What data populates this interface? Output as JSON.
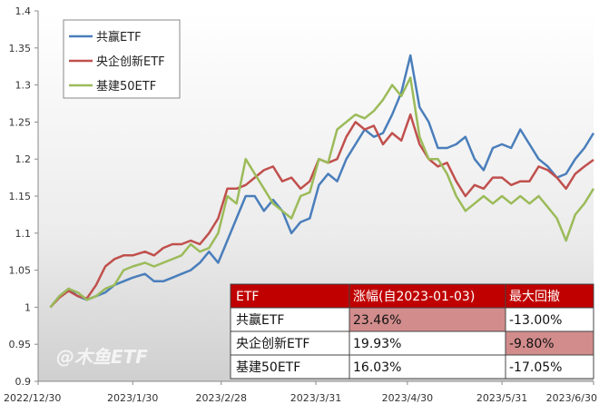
{
  "chart_data": {
    "type": "line",
    "title": "",
    "xlabel": "",
    "ylabel": "",
    "ylim": [
      0.9,
      1.4
    ],
    "yticks": [
      "0.9",
      "0.95",
      "1",
      "1.05",
      "1.1",
      "1.15",
      "1.2",
      "1.25",
      "1.3",
      "1.35",
      "1.4"
    ],
    "xticks": [
      {
        "date": "2022-12-30",
        "label": "2022/12/30"
      },
      {
        "date": "2023-01-30",
        "label": "2023/1/30"
      },
      {
        "date": "2023-02-28",
        "label": "2023/2/28"
      },
      {
        "date": "2023-03-31",
        "label": "2023/3/31"
      },
      {
        "date": "2023-04-30",
        "label": "2023/4/30"
      },
      {
        "date": "2023-05-31",
        "label": "2023/5/31"
      },
      {
        "date": "2023-06-30",
        "label": "2023/6/30"
      }
    ],
    "xlim": [
      "2022-12-30",
      "2023-06-30"
    ],
    "grid": false,
    "legend_position": "top-left",
    "series": [
      {
        "name": "共赢ETF",
        "color": "#4a7ebb",
        "points": [
          [
            "2023-01-03",
            1.0
          ],
          [
            "2023-01-06",
            1.015
          ],
          [
            "2023-01-09",
            1.025
          ],
          [
            "2023-01-12",
            1.015
          ],
          [
            "2023-01-15",
            1.01
          ],
          [
            "2023-01-18",
            1.015
          ],
          [
            "2023-01-21",
            1.02
          ],
          [
            "2023-01-24",
            1.03
          ],
          [
            "2023-01-27",
            1.035
          ],
          [
            "2023-01-30",
            1.04
          ],
          [
            "2023-02-03",
            1.045
          ],
          [
            "2023-02-06",
            1.035
          ],
          [
            "2023-02-09",
            1.035
          ],
          [
            "2023-02-12",
            1.04
          ],
          [
            "2023-02-15",
            1.045
          ],
          [
            "2023-02-18",
            1.05
          ],
          [
            "2023-02-21",
            1.06
          ],
          [
            "2023-02-24",
            1.075
          ],
          [
            "2023-02-27",
            1.06
          ],
          [
            "2023-03-02",
            1.09
          ],
          [
            "2023-03-05",
            1.12
          ],
          [
            "2023-03-08",
            1.15
          ],
          [
            "2023-03-11",
            1.15
          ],
          [
            "2023-03-14",
            1.13
          ],
          [
            "2023-03-17",
            1.145
          ],
          [
            "2023-03-20",
            1.13
          ],
          [
            "2023-03-23",
            1.1
          ],
          [
            "2023-03-26",
            1.115
          ],
          [
            "2023-03-29",
            1.12
          ],
          [
            "2023-04-01",
            1.165
          ],
          [
            "2023-04-04",
            1.18
          ],
          [
            "2023-04-07",
            1.17
          ],
          [
            "2023-04-10",
            1.2
          ],
          [
            "2023-04-13",
            1.22
          ],
          [
            "2023-04-16",
            1.24
          ],
          [
            "2023-04-19",
            1.23
          ],
          [
            "2023-04-22",
            1.235
          ],
          [
            "2023-04-25",
            1.26
          ],
          [
            "2023-04-28",
            1.29
          ],
          [
            "2023-05-01",
            1.34
          ],
          [
            "2023-05-04",
            1.27
          ],
          [
            "2023-05-07",
            1.25
          ],
          [
            "2023-05-10",
            1.215
          ],
          [
            "2023-05-13",
            1.215
          ],
          [
            "2023-05-16",
            1.22
          ],
          [
            "2023-05-19",
            1.23
          ],
          [
            "2023-05-22",
            1.2
          ],
          [
            "2023-05-25",
            1.185
          ],
          [
            "2023-05-28",
            1.215
          ],
          [
            "2023-05-31",
            1.22
          ],
          [
            "2023-06-03",
            1.215
          ],
          [
            "2023-06-06",
            1.24
          ],
          [
            "2023-06-09",
            1.22
          ],
          [
            "2023-06-12",
            1.2
          ],
          [
            "2023-06-15",
            1.19
          ],
          [
            "2023-06-18",
            1.175
          ],
          [
            "2023-06-21",
            1.18
          ],
          [
            "2023-06-24",
            1.2
          ],
          [
            "2023-06-27",
            1.215
          ],
          [
            "2023-06-30",
            1.235
          ]
        ]
      },
      {
        "name": "央企创新ETF",
        "color": "#c0504d",
        "points": [
          [
            "2023-01-03",
            1.0
          ],
          [
            "2023-01-06",
            1.013
          ],
          [
            "2023-01-09",
            1.022
          ],
          [
            "2023-01-12",
            1.015
          ],
          [
            "2023-01-15",
            1.012
          ],
          [
            "2023-01-18",
            1.03
          ],
          [
            "2023-01-21",
            1.055
          ],
          [
            "2023-01-24",
            1.065
          ],
          [
            "2023-01-27",
            1.07
          ],
          [
            "2023-01-30",
            1.07
          ],
          [
            "2023-02-03",
            1.075
          ],
          [
            "2023-02-06",
            1.07
          ],
          [
            "2023-02-09",
            1.08
          ],
          [
            "2023-02-12",
            1.085
          ],
          [
            "2023-02-15",
            1.085
          ],
          [
            "2023-02-18",
            1.09
          ],
          [
            "2023-02-21",
            1.085
          ],
          [
            "2023-02-24",
            1.1
          ],
          [
            "2023-02-27",
            1.12
          ],
          [
            "2023-03-02",
            1.16
          ],
          [
            "2023-03-05",
            1.16
          ],
          [
            "2023-03-08",
            1.165
          ],
          [
            "2023-03-11",
            1.175
          ],
          [
            "2023-03-14",
            1.185
          ],
          [
            "2023-03-17",
            1.19
          ],
          [
            "2023-03-20",
            1.17
          ],
          [
            "2023-03-23",
            1.175
          ],
          [
            "2023-03-26",
            1.16
          ],
          [
            "2023-03-29",
            1.17
          ],
          [
            "2023-04-01",
            1.2
          ],
          [
            "2023-04-04",
            1.195
          ],
          [
            "2023-04-07",
            1.2
          ],
          [
            "2023-04-10",
            1.23
          ],
          [
            "2023-04-13",
            1.25
          ],
          [
            "2023-04-16",
            1.24
          ],
          [
            "2023-04-19",
            1.245
          ],
          [
            "2023-04-22",
            1.22
          ],
          [
            "2023-04-25",
            1.235
          ],
          [
            "2023-04-28",
            1.225
          ],
          [
            "2023-05-01",
            1.26
          ],
          [
            "2023-05-04",
            1.22
          ],
          [
            "2023-05-07",
            1.2
          ],
          [
            "2023-05-10",
            1.19
          ],
          [
            "2023-05-13",
            1.195
          ],
          [
            "2023-05-16",
            1.17
          ],
          [
            "2023-05-19",
            1.15
          ],
          [
            "2023-05-22",
            1.165
          ],
          [
            "2023-05-25",
            1.16
          ],
          [
            "2023-05-28",
            1.175
          ],
          [
            "2023-05-31",
            1.175
          ],
          [
            "2023-06-03",
            1.165
          ],
          [
            "2023-06-06",
            1.17
          ],
          [
            "2023-06-09",
            1.17
          ],
          [
            "2023-06-12",
            1.19
          ],
          [
            "2023-06-15",
            1.185
          ],
          [
            "2023-06-18",
            1.175
          ],
          [
            "2023-06-21",
            1.16
          ],
          [
            "2023-06-24",
            1.18
          ],
          [
            "2023-06-27",
            1.19
          ],
          [
            "2023-06-30",
            1.199
          ]
        ]
      },
      {
        "name": "基建50ETF",
        "color": "#9bbb59",
        "points": [
          [
            "2023-01-03",
            1.0
          ],
          [
            "2023-01-06",
            1.015
          ],
          [
            "2023-01-09",
            1.025
          ],
          [
            "2023-01-12",
            1.02
          ],
          [
            "2023-01-15",
            1.01
          ],
          [
            "2023-01-18",
            1.015
          ],
          [
            "2023-01-21",
            1.025
          ],
          [
            "2023-01-24",
            1.03
          ],
          [
            "2023-01-27",
            1.05
          ],
          [
            "2023-01-30",
            1.055
          ],
          [
            "2023-02-03",
            1.06
          ],
          [
            "2023-02-06",
            1.055
          ],
          [
            "2023-02-09",
            1.06
          ],
          [
            "2023-02-12",
            1.065
          ],
          [
            "2023-02-15",
            1.07
          ],
          [
            "2023-02-18",
            1.085
          ],
          [
            "2023-02-21",
            1.075
          ],
          [
            "2023-02-24",
            1.08
          ],
          [
            "2023-02-27",
            1.1
          ],
          [
            "2023-03-02",
            1.15
          ],
          [
            "2023-03-05",
            1.14
          ],
          [
            "2023-03-08",
            1.2
          ],
          [
            "2023-03-11",
            1.18
          ],
          [
            "2023-03-14",
            1.16
          ],
          [
            "2023-03-17",
            1.14
          ],
          [
            "2023-03-20",
            1.13
          ],
          [
            "2023-03-23",
            1.12
          ],
          [
            "2023-03-26",
            1.15
          ],
          [
            "2023-03-29",
            1.155
          ],
          [
            "2023-04-01",
            1.2
          ],
          [
            "2023-04-04",
            1.195
          ],
          [
            "2023-04-07",
            1.24
          ],
          [
            "2023-04-10",
            1.25
          ],
          [
            "2023-04-13",
            1.26
          ],
          [
            "2023-04-16",
            1.255
          ],
          [
            "2023-04-19",
            1.265
          ],
          [
            "2023-04-22",
            1.28
          ],
          [
            "2023-04-25",
            1.3
          ],
          [
            "2023-04-28",
            1.285
          ],
          [
            "2023-05-01",
            1.31
          ],
          [
            "2023-05-04",
            1.23
          ],
          [
            "2023-05-07",
            1.2
          ],
          [
            "2023-05-10",
            1.2
          ],
          [
            "2023-05-13",
            1.18
          ],
          [
            "2023-05-16",
            1.15
          ],
          [
            "2023-05-19",
            1.13
          ],
          [
            "2023-05-22",
            1.14
          ],
          [
            "2023-05-25",
            1.15
          ],
          [
            "2023-05-28",
            1.14
          ],
          [
            "2023-05-31",
            1.15
          ],
          [
            "2023-06-03",
            1.14
          ],
          [
            "2023-06-06",
            1.15
          ],
          [
            "2023-06-09",
            1.14
          ],
          [
            "2023-06-12",
            1.15
          ],
          [
            "2023-06-15",
            1.135
          ],
          [
            "2023-06-18",
            1.12
          ],
          [
            "2023-06-21",
            1.09
          ],
          [
            "2023-06-24",
            1.125
          ],
          [
            "2023-06-27",
            1.14
          ],
          [
            "2023-06-30",
            1.16
          ]
        ]
      }
    ],
    "table": {
      "columns": [
        "ETF",
        "涨幅(自2023-01-03)",
        "最大回撤"
      ],
      "rows": [
        {
          "etf": "共赢ETF",
          "gain": "23.46%",
          "drawdown": "-13.00%",
          "highlight_gain": true,
          "highlight_drawdown": false
        },
        {
          "etf": "央企创新ETF",
          "gain": "19.93%",
          "drawdown": "-9.80%",
          "highlight_gain": false,
          "highlight_drawdown": true
        },
        {
          "etf": "基建50ETF",
          "gain": "16.03%",
          "drawdown": "-17.05%",
          "highlight_gain": false,
          "highlight_drawdown": false
        }
      ],
      "header_color": "#c00000",
      "highlight_color": "#d28c8c"
    },
    "watermark": "@木鱼ETF"
  }
}
